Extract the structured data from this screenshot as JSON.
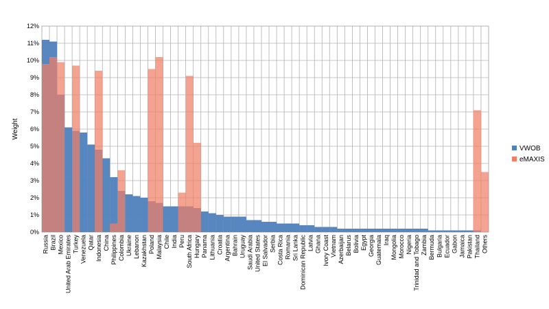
{
  "chart_data": {
    "type": "bar",
    "ylabel": "Weight",
    "ylim": [
      0,
      12
    ],
    "yticks": [
      "0%",
      "1%",
      "2%",
      "3%",
      "4%",
      "5%",
      "6%",
      "7%",
      "8%",
      "9%",
      "10%",
      "11%",
      "12%"
    ],
    "grid": true,
    "legend_position": "right",
    "overlap": true,
    "categories": [
      "Russia",
      "Brazil",
      "Mexico",
      "United Arab Emirates",
      "Turkey",
      "Venezuela",
      "Qatar",
      "Indonesia",
      "China",
      "Philippines",
      "Colombia",
      "Ukraine",
      "Lebanon",
      "Kazakhstan",
      "Poland",
      "Malaysia",
      "Chile",
      "India",
      "Peru",
      "South Africa",
      "Hungary",
      "Panama",
      "Lithuania",
      "Croatia",
      "Argentina",
      "Bahrain",
      "Uruguay",
      "Saudi Arabia",
      "United States",
      "El Salvador",
      "Serbia",
      "Costa Rica",
      "Romania",
      "Sri Lanka",
      "Dominican Republic",
      "Latvia",
      "Ghana",
      "Ivory Coast",
      "Vietnam",
      "Azerbaijan",
      "Belarus",
      "Bolivia",
      "Egypt",
      "Georgia",
      "Guatemala",
      "Iraq",
      "Mongolia",
      "Morocco",
      "Nigeria",
      "Trinidad and Tobago",
      "Zambia",
      "Bermuda",
      "Bulgaria",
      "Ecuador",
      "Gabon",
      "Jamaica",
      "Pakistan",
      "Thailand",
      "Others"
    ],
    "series": [
      {
        "name": "VWOB",
        "color": "#4f81bd",
        "values": [
          11.2,
          11.1,
          8.0,
          6.1,
          5.9,
          5.8,
          5.1,
          4.8,
          4.3,
          3.2,
          2.4,
          2.2,
          2.1,
          2.0,
          1.8,
          1.7,
          1.5,
          1.5,
          1.5,
          1.5,
          1.4,
          1.2,
          1.1,
          1.0,
          0.9,
          0.9,
          0.9,
          0.7,
          0.7,
          0.6,
          0.6,
          0.5,
          0.5,
          0.5,
          0.4,
          0.4,
          0.3,
          0.3,
          0.3,
          0.2,
          0.2,
          0.2,
          0.2,
          0.2,
          0.2,
          0.2,
          0.2,
          0.2,
          0.2,
          0.2,
          0.2,
          0.1,
          0.1,
          0.1,
          0.1,
          0.1,
          0.1,
          0.1,
          0.0
        ]
      },
      {
        "name": "eMAXIS",
        "color": "#f07f65",
        "values": [
          9.8,
          10.2,
          9.9,
          0,
          9.7,
          0,
          0,
          9.4,
          0,
          0.5,
          3.6,
          0,
          0,
          0,
          9.5,
          10.2,
          0,
          0,
          2.3,
          9.1,
          5.2,
          0,
          0,
          0,
          0,
          0,
          0,
          0,
          0,
          0,
          0,
          0,
          0,
          0,
          0,
          0,
          0,
          0,
          0,
          0,
          0,
          0,
          0,
          0,
          0,
          0,
          0,
          0,
          0,
          0,
          0,
          0,
          0,
          0,
          0,
          0,
          0,
          7.1,
          3.5
        ]
      }
    ]
  }
}
